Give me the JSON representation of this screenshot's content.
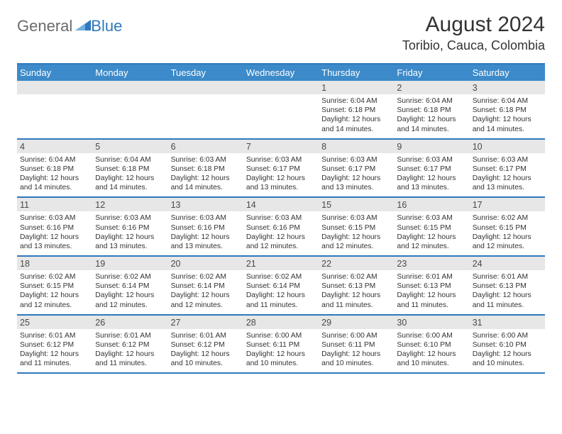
{
  "logo": {
    "word1": "General",
    "word2": "Blue",
    "color_general": "#6a6a6a",
    "color_blue": "#2f78bd"
  },
  "title": "August 2024",
  "location": "Toribio, Cauca, Colombia",
  "colors": {
    "header_bg": "#3c8ac9",
    "border": "#2f78bd",
    "daynum_bg": "#e7e7e7",
    "page_bg": "#ffffff",
    "text": "#333333"
  },
  "fonts": {
    "title_pt": 30,
    "location_pt": 18,
    "header_pt": 13,
    "daynum_pt": 12.5,
    "body_pt": 10.3
  },
  "day_headers": [
    "Sunday",
    "Monday",
    "Tuesday",
    "Wednesday",
    "Thursday",
    "Friday",
    "Saturday"
  ],
  "label_sunrise": "Sunrise:",
  "label_sunset": "Sunset:",
  "label_daylight": "Daylight:",
  "weeks": [
    [
      null,
      null,
      null,
      null,
      {
        "n": "1",
        "sunrise": "6:04 AM",
        "sunset": "6:18 PM",
        "daylight": "12 hours and 14 minutes."
      },
      {
        "n": "2",
        "sunrise": "6:04 AM",
        "sunset": "6:18 PM",
        "daylight": "12 hours and 14 minutes."
      },
      {
        "n": "3",
        "sunrise": "6:04 AM",
        "sunset": "6:18 PM",
        "daylight": "12 hours and 14 minutes."
      }
    ],
    [
      {
        "n": "4",
        "sunrise": "6:04 AM",
        "sunset": "6:18 PM",
        "daylight": "12 hours and 14 minutes."
      },
      {
        "n": "5",
        "sunrise": "6:04 AM",
        "sunset": "6:18 PM",
        "daylight": "12 hours and 14 minutes."
      },
      {
        "n": "6",
        "sunrise": "6:03 AM",
        "sunset": "6:18 PM",
        "daylight": "12 hours and 14 minutes."
      },
      {
        "n": "7",
        "sunrise": "6:03 AM",
        "sunset": "6:17 PM",
        "daylight": "12 hours and 13 minutes."
      },
      {
        "n": "8",
        "sunrise": "6:03 AM",
        "sunset": "6:17 PM",
        "daylight": "12 hours and 13 minutes."
      },
      {
        "n": "9",
        "sunrise": "6:03 AM",
        "sunset": "6:17 PM",
        "daylight": "12 hours and 13 minutes."
      },
      {
        "n": "10",
        "sunrise": "6:03 AM",
        "sunset": "6:17 PM",
        "daylight": "12 hours and 13 minutes."
      }
    ],
    [
      {
        "n": "11",
        "sunrise": "6:03 AM",
        "sunset": "6:16 PM",
        "daylight": "12 hours and 13 minutes."
      },
      {
        "n": "12",
        "sunrise": "6:03 AM",
        "sunset": "6:16 PM",
        "daylight": "12 hours and 13 minutes."
      },
      {
        "n": "13",
        "sunrise": "6:03 AM",
        "sunset": "6:16 PM",
        "daylight": "12 hours and 13 minutes."
      },
      {
        "n": "14",
        "sunrise": "6:03 AM",
        "sunset": "6:16 PM",
        "daylight": "12 hours and 12 minutes."
      },
      {
        "n": "15",
        "sunrise": "6:03 AM",
        "sunset": "6:15 PM",
        "daylight": "12 hours and 12 minutes."
      },
      {
        "n": "16",
        "sunrise": "6:03 AM",
        "sunset": "6:15 PM",
        "daylight": "12 hours and 12 minutes."
      },
      {
        "n": "17",
        "sunrise": "6:02 AM",
        "sunset": "6:15 PM",
        "daylight": "12 hours and 12 minutes."
      }
    ],
    [
      {
        "n": "18",
        "sunrise": "6:02 AM",
        "sunset": "6:15 PM",
        "daylight": "12 hours and 12 minutes."
      },
      {
        "n": "19",
        "sunrise": "6:02 AM",
        "sunset": "6:14 PM",
        "daylight": "12 hours and 12 minutes."
      },
      {
        "n": "20",
        "sunrise": "6:02 AM",
        "sunset": "6:14 PM",
        "daylight": "12 hours and 12 minutes."
      },
      {
        "n": "21",
        "sunrise": "6:02 AM",
        "sunset": "6:14 PM",
        "daylight": "12 hours and 11 minutes."
      },
      {
        "n": "22",
        "sunrise": "6:02 AM",
        "sunset": "6:13 PM",
        "daylight": "12 hours and 11 minutes."
      },
      {
        "n": "23",
        "sunrise": "6:01 AM",
        "sunset": "6:13 PM",
        "daylight": "12 hours and 11 minutes."
      },
      {
        "n": "24",
        "sunrise": "6:01 AM",
        "sunset": "6:13 PM",
        "daylight": "12 hours and 11 minutes."
      }
    ],
    [
      {
        "n": "25",
        "sunrise": "6:01 AM",
        "sunset": "6:12 PM",
        "daylight": "12 hours and 11 minutes."
      },
      {
        "n": "26",
        "sunrise": "6:01 AM",
        "sunset": "6:12 PM",
        "daylight": "12 hours and 11 minutes."
      },
      {
        "n": "27",
        "sunrise": "6:01 AM",
        "sunset": "6:12 PM",
        "daylight": "12 hours and 10 minutes."
      },
      {
        "n": "28",
        "sunrise": "6:00 AM",
        "sunset": "6:11 PM",
        "daylight": "12 hours and 10 minutes."
      },
      {
        "n": "29",
        "sunrise": "6:00 AM",
        "sunset": "6:11 PM",
        "daylight": "12 hours and 10 minutes."
      },
      {
        "n": "30",
        "sunrise": "6:00 AM",
        "sunset": "6:10 PM",
        "daylight": "12 hours and 10 minutes."
      },
      {
        "n": "31",
        "sunrise": "6:00 AM",
        "sunset": "6:10 PM",
        "daylight": "12 hours and 10 minutes."
      }
    ]
  ]
}
